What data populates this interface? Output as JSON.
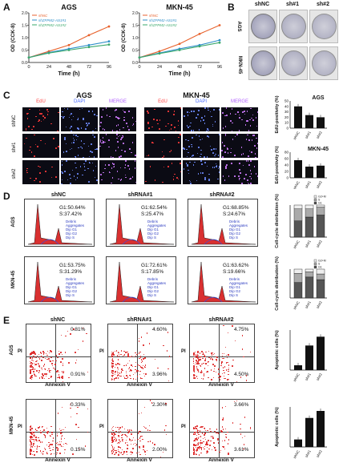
{
  "panels": {
    "A": "A",
    "B": "B",
    "C": "C",
    "D": "D",
    "E": "E"
  },
  "panelA": {
    "left": {
      "title": "AGS",
      "ylabel": "OD (CCK-8)",
      "xlabel": "Time (h)",
      "legend": [
        "shNC",
        "shZFPM2-AS1#1",
        "shZFPM2-AS1#2"
      ],
      "xticks": [
        "0",
        "24",
        "48",
        "72",
        "96"
      ],
      "yticks": [
        "0.0",
        "0.5",
        "1.0",
        "1.5",
        "2.0"
      ]
    },
    "right": {
      "title": "MKN-45",
      "ylabel": "OD (CCK-8)",
      "xlabel": "Time (h)",
      "legend": [
        "shNC",
        "shZFPM2-AS1#1",
        "shZFPM2-AS1#2"
      ],
      "xticks": [
        "0",
        "24",
        "48",
        "72",
        "96"
      ],
      "yticks": [
        "0.0",
        "0.5",
        "1.0",
        "1.5",
        "2.0"
      ]
    }
  },
  "panelB": {
    "cols": [
      "shNC",
      "sh#1",
      "sh#2"
    ],
    "rows": [
      "AGS",
      "MKN-45"
    ]
  },
  "panelC": {
    "groups": [
      "AGS",
      "MKN-45"
    ],
    "channels": [
      "EdU",
      "DAPI",
      "MERGE"
    ],
    "rows": [
      "shNC",
      "sh#1",
      "sh#2"
    ],
    "bar1": {
      "title": "AGS",
      "ylabel": "EdU-positivity (%)",
      "yticks": [
        "0",
        "10",
        "20",
        "30",
        "40",
        "50"
      ],
      "cats": [
        "shNC",
        "sh#1",
        "sh#2"
      ]
    },
    "bar2": {
      "title": "MKN-45",
      "ylabel": "EdU-positivity (%)",
      "yticks": [
        "0",
        "20",
        "40",
        "60",
        "80"
      ],
      "cats": [
        "shNC",
        "sh#1",
        "sh#2"
      ]
    }
  },
  "panelD": {
    "cols": [
      "shNC",
      "shRNA#1",
      "shRNA#2"
    ],
    "rows": [
      "AGS",
      "MKN-45"
    ],
    "stats": [
      [
        "G1:50.64%",
        "S:37.42%"
      ],
      [
        "G1:62.54%",
        "S:25.47%"
      ],
      [
        "G1:68.85%",
        "S:24.67%"
      ],
      [
        "G1:53.75%",
        "S:31.29%"
      ],
      [
        "G1:72.61%",
        "S:17.85%"
      ],
      [
        "G1:63.62%",
        "S:19.66%"
      ]
    ],
    "legendItems": [
      "Debris",
      "Aggregates",
      "Dip G1",
      "Dip G2",
      "Dip S"
    ],
    "bar": {
      "ylabel": "Cell-cycle distribution (%)",
      "cats": [
        "shNC",
        "sh#1",
        "sh#2"
      ],
      "legend": [
        "G2+M",
        "S",
        "G1"
      ]
    }
  },
  "panelE": {
    "cols": [
      "shNC",
      "shRNA#1",
      "shRNA#2"
    ],
    "rows": [
      "AGS",
      "MKN-45"
    ],
    "xlabel": "Annexin V",
    "ylabel": "PI",
    "quads": [
      [
        "0.81%",
        "0.91%"
      ],
      [
        "4.60%",
        "3.96%"
      ],
      [
        "4.75%",
        "4.50%"
      ],
      [
        "0.33%",
        "0.15%"
      ],
      [
        "2.30%",
        "2.00%"
      ],
      [
        "3.66%",
        "3.61%"
      ]
    ],
    "bar": {
      "ylabel": "Apoptotic cells (%)",
      "cats": [
        "shNC",
        "sh#1",
        "sh#2"
      ]
    }
  },
  "chart_data": [
    {
      "type": "line",
      "title": "AGS",
      "xlabel": "Time (h)",
      "ylabel": "OD (CCK-8)",
      "x": [
        0,
        24,
        48,
        72,
        96
      ],
      "ylim": [
        0,
        2
      ],
      "series": [
        {
          "name": "shNC",
          "values": [
            0.2,
            0.45,
            0.7,
            1.1,
            1.45
          ]
        },
        {
          "name": "shZFPM2-AS1#1",
          "values": [
            0.2,
            0.4,
            0.55,
            0.7,
            0.85
          ]
        },
        {
          "name": "shZFPM2-AS1#2",
          "values": [
            0.2,
            0.38,
            0.5,
            0.62,
            0.72
          ]
        }
      ]
    },
    {
      "type": "line",
      "title": "MKN-45",
      "xlabel": "Time (h)",
      "ylabel": "OD (CCK-8)",
      "x": [
        0,
        24,
        48,
        72,
        96
      ],
      "ylim": [
        0,
        2
      ],
      "series": [
        {
          "name": "shNC",
          "values": [
            0.2,
            0.45,
            0.75,
            1.15,
            1.5
          ]
        },
        {
          "name": "shZFPM2-AS1#1",
          "values": [
            0.2,
            0.38,
            0.55,
            0.7,
            0.9
          ]
        },
        {
          "name": "shZFPM2-AS1#2",
          "values": [
            0.2,
            0.36,
            0.5,
            0.65,
            0.8
          ]
        }
      ]
    },
    {
      "type": "bar",
      "title": "AGS",
      "ylabel": "EdU-positivity (%)",
      "categories": [
        "shNC",
        "sh#1",
        "sh#2"
      ],
      "values": [
        40,
        24,
        20
      ],
      "ylim": [
        0,
        50
      ]
    },
    {
      "type": "bar",
      "title": "MKN-45",
      "ylabel": "EdU-positivity (%)",
      "categories": [
        "shNC",
        "sh#1",
        "sh#2"
      ],
      "values": [
        55,
        35,
        38
      ],
      "ylim": [
        0,
        80
      ]
    },
    {
      "type": "bar",
      "ylabel": "Cell-cycle distribution (%)",
      "categories": [
        "shNC",
        "sh#1",
        "sh#2"
      ],
      "series": [
        {
          "name": "G1",
          "values": [
            50.64,
            62.54,
            68.85
          ]
        },
        {
          "name": "S",
          "values": [
            37.42,
            25.47,
            24.67
          ]
        },
        {
          "name": "G2+M",
          "values": [
            11.94,
            11.99,
            6.48
          ]
        }
      ]
    },
    {
      "type": "bar",
      "ylabel": "Cell-cycle distribution (%)",
      "categories": [
        "shNC",
        "sh#1",
        "sh#2"
      ],
      "series": [
        {
          "name": "G1",
          "values": [
            53.75,
            72.61,
            63.62
          ]
        },
        {
          "name": "S",
          "values": [
            31.29,
            17.85,
            19.66
          ]
        },
        {
          "name": "G2+M",
          "values": [
            14.96,
            9.54,
            16.72
          ]
        }
      ]
    },
    {
      "type": "bar",
      "ylabel": "Apoptotic cells (%)",
      "categories": [
        "shNC",
        "sh#1",
        "sh#2"
      ],
      "values": [
        1.8,
        9.2,
        12.5
      ],
      "ylim": [
        0,
        15
      ]
    },
    {
      "type": "bar",
      "ylabel": "Apoptotic cells (%)",
      "categories": [
        "shNC",
        "sh#1",
        "sh#2"
      ],
      "values": [
        1.5,
        5.8,
        7.2
      ],
      "ylim": [
        0,
        8
      ]
    }
  ]
}
